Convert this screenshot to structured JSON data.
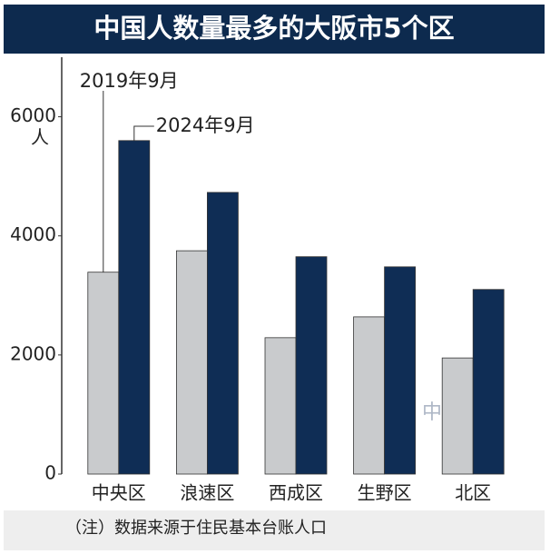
{
  "chart_data": {
    "type": "bar",
    "title": "中国人数量最多的大阪市5个区",
    "y_unit": "人",
    "categories": [
      "中央区",
      "浪速区",
      "西成区",
      "生野区",
      "北区"
    ],
    "series": [
      {
        "name": "2019年9月",
        "color": "#c9cbcd",
        "values": [
          3390,
          3750,
          2290,
          2640,
          1950
        ]
      },
      {
        "name": "2024年9月",
        "color": "#0f2d55",
        "values": [
          5600,
          4730,
          3650,
          3480,
          3100
        ]
      }
    ],
    "ylim": [
      0,
      7000
    ],
    "yticks": [
      0,
      2000,
      4000,
      6000
    ],
    "note": "（注）数据来源于住民基本台账人口",
    "watermark": "中文网"
  }
}
